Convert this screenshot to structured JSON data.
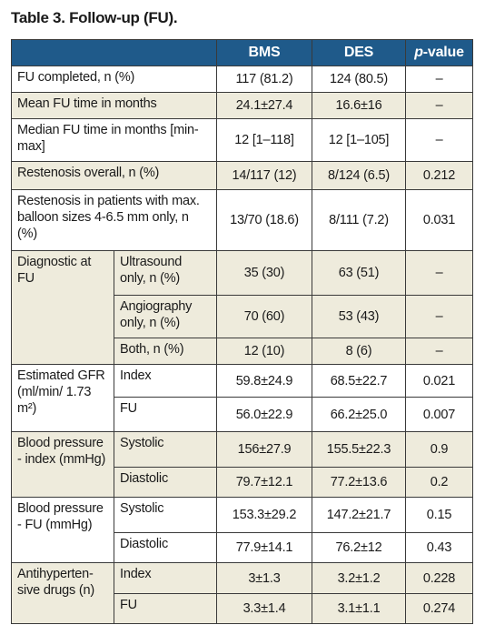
{
  "title": "Table 3. Follow-up (FU).",
  "table": {
    "header": [
      "BMS",
      "DES",
      "p-value"
    ],
    "groups": [
      {
        "label": "FU completed, n (%)",
        "rows": [
          {
            "bms": "117 (81.2)",
            "des": "124 (80.5)",
            "p": "–"
          }
        ]
      },
      {
        "label": "Mean FU time in months",
        "rows": [
          {
            "bms": "24.1±27.4",
            "des": "16.6±16",
            "p": "–"
          }
        ]
      },
      {
        "label": "Median FU time in months [min-max]",
        "rows": [
          {
            "bms": "12 [1–118]",
            "des": "12 [1–105]",
            "p": "–"
          }
        ]
      },
      {
        "label": "Restenosis overall, n (%)",
        "rows": [
          {
            "bms": "14/117 (12)",
            "des": "8/124 (6.5)",
            "p": "0.212"
          }
        ]
      },
      {
        "label": "Restenosis in patients with max. balloon sizes 4-6.5 mm only, n (%)",
        "rows": [
          {
            "bms": "13/70 (18.6)",
            "des": "8/111 (7.2)",
            "p": "0.031"
          }
        ]
      },
      {
        "label": "Diagnostic at FU",
        "rows": [
          {
            "sub": "Ultrasound only, n (%)",
            "bms": "35 (30)",
            "des": "63 (51)",
            "p": "–"
          },
          {
            "sub": "Angiography only, n (%)",
            "bms": "70 (60)",
            "des": "53 (43)",
            "p": "–"
          },
          {
            "sub": "Both, n (%)",
            "bms": "12 (10)",
            "des": "8 (6)",
            "p": "–"
          }
        ]
      },
      {
        "label": "Estimated GFR (ml/min/ 1.73 m²)",
        "rows": [
          {
            "sub": "Index",
            "bms": "59.8±24.9",
            "des": "68.5±22.7",
            "p": "0.021"
          },
          {
            "sub": "FU",
            "bms": "56.0±22.9",
            "des": "66.2±25.0",
            "p": "0.007"
          }
        ]
      },
      {
        "label": "Blood pressure - index (mmHg)",
        "rows": [
          {
            "sub": "Systolic",
            "bms": "156±27.9",
            "des": "155.5±22.3",
            "p": "0.9"
          },
          {
            "sub": "Diastolic",
            "bms": "79.7±12.1",
            "des": "77.2±13.6",
            "p": "0.2"
          }
        ]
      },
      {
        "label": "Blood pressure - FU (mmHg)",
        "rows": [
          {
            "sub": "Systolic",
            "bms": "153.3±29.2",
            "des": "147.2±21.7",
            "p": "0.15"
          },
          {
            "sub": "Diastolic",
            "bms": "77.9±14.1",
            "des": "76.2±12",
            "p": "0.43"
          }
        ]
      },
      {
        "label": "Antihyperten-sive drugs (n)",
        "rows": [
          {
            "sub": "Index",
            "bms": "3±1.3",
            "des": "3.2±1.2",
            "p": "0.228"
          },
          {
            "sub": "FU",
            "bms": "3.3±1.4",
            "des": "3.1±1.1",
            "p": "0.274"
          }
        ]
      }
    ]
  }
}
